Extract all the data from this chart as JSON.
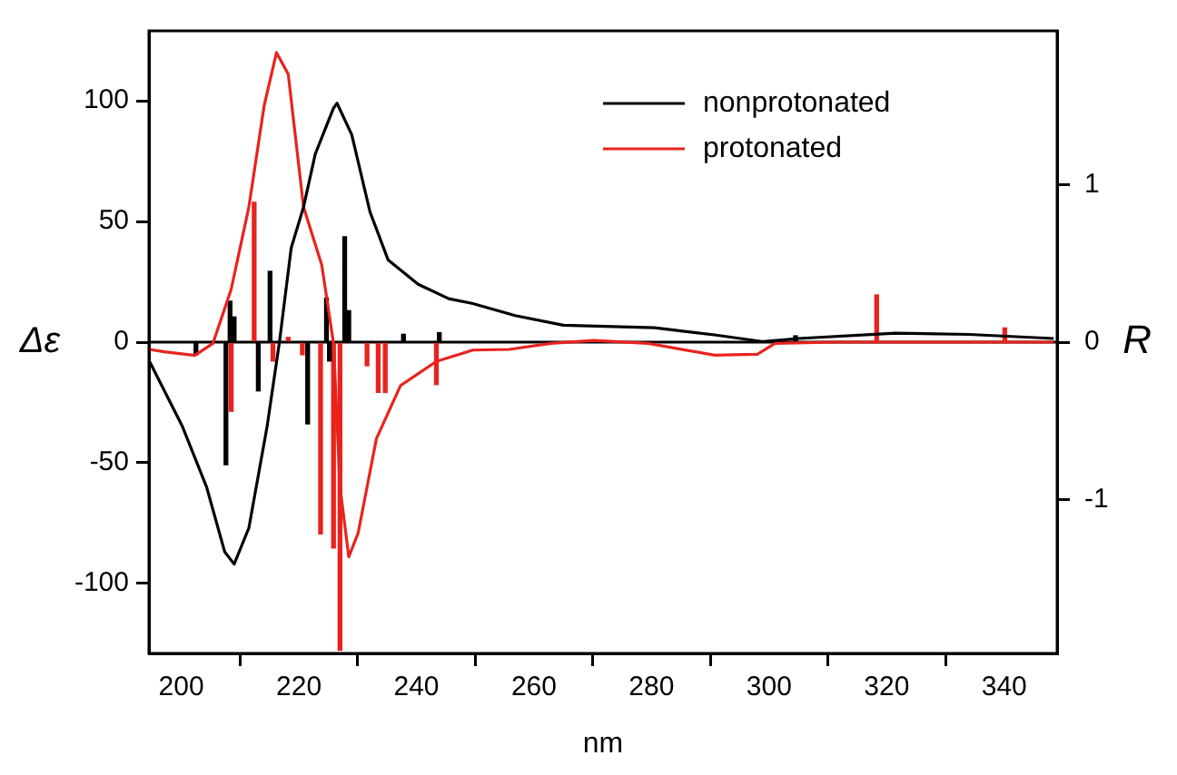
{
  "chart_data": {
    "type": "line",
    "xlabel": "nm",
    "ylabel": "Δε",
    "y2label": "R",
    "xlim": [
      194.5,
      349
    ],
    "xticks": [
      200,
      220,
      240,
      260,
      280,
      300,
      320,
      340
    ],
    "ylim": [
      -129,
      129
    ],
    "yticks": [
      -100,
      -50,
      0,
      50,
      100
    ],
    "y2lim": [
      -1.98,
      1.98
    ],
    "y2ticks": [
      -1,
      0,
      1
    ],
    "grid": false,
    "legend": "top right",
    "marker": "none",
    "line_style": "solid",
    "ref_lines": [
      {
        "axis": "y",
        "value": 0,
        "color": "#000000"
      }
    ],
    "series": [
      {
        "name": "nonprotonated",
        "color": "#000000",
        "x": [
          194.6,
          200.2,
          204.3,
          207.4,
          209,
          211.5,
          214.6,
          216.7,
          218.7,
          220.8,
          222.8,
          225.9,
          226.5,
          229,
          232.1,
          235.2,
          240.3,
          245.5,
          249.6,
          256.8,
          265,
          280.5,
          290.7,
          299,
          305,
          321.5,
          334,
          348.4
        ],
        "values": [
          -8,
          -35,
          -60,
          -87,
          -92,
          -77,
          -35,
          0,
          39,
          56,
          78,
          97,
          99,
          86,
          54,
          34,
          24,
          18,
          16,
          11,
          7,
          6,
          3,
          0.2,
          1.5,
          3.7,
          3.2,
          1.5
        ]
      },
      {
        "name": "protonated",
        "color": "#e8231e",
        "x": [
          194.6,
          197.1,
          202.3,
          205.4,
          208.5,
          211.5,
          214.1,
          216.2,
          218.2,
          220.8,
          223.9,
          225.9,
          227,
          228.5,
          230.1,
          233.2,
          237.3,
          243.4,
          249.6,
          255.8,
          262.9,
          270.2,
          279.4,
          290.7,
          298,
          301,
          311.3,
          348.4
        ],
        "values": [
          -3,
          -4,
          -5.5,
          -0.5,
          22,
          56,
          98,
          120,
          111,
          56,
          32,
          -0.5,
          -60,
          -89,
          -79,
          -40,
          -18,
          -8,
          -3.3,
          -3,
          -0.5,
          0.7,
          -0.5,
          -5.4,
          -5,
          -0.5,
          0,
          0
        ]
      },
      {
        "color": "#000000",
        "type": "bar",
        "axis": "y2",
        "x": [
          202.5,
          207.6,
          208.3,
          209,
          213.1,
          215.1,
          221.5,
          224.7,
          225.2,
          227.8,
          228.5,
          237.8,
          243.9,
          304.5
        ],
        "values": [
          -0.08,
          -0.78,
          0.26,
          0.16,
          -0.31,
          0.45,
          -0.52,
          0.28,
          -0.12,
          0.67,
          0.2,
          0.05,
          0.06,
          0.04
        ]
      },
      {
        "color": "#e8231e",
        "type": "bar",
        "axis": "y2",
        "x": [
          208.5,
          212.4,
          213,
          215.6,
          218.2,
          220.6,
          223.7,
          225.9,
          227,
          231.6,
          233.5,
          234.7,
          243.4,
          318.3,
          340.1
        ],
        "values": [
          -0.44,
          0.89,
          null,
          -0.12,
          0.03,
          -0.08,
          -1.22,
          -1.31,
          -1.96,
          -0.15,
          -0.32,
          -0.32,
          -0.27,
          0.3,
          0.09
        ]
      }
    ]
  }
}
